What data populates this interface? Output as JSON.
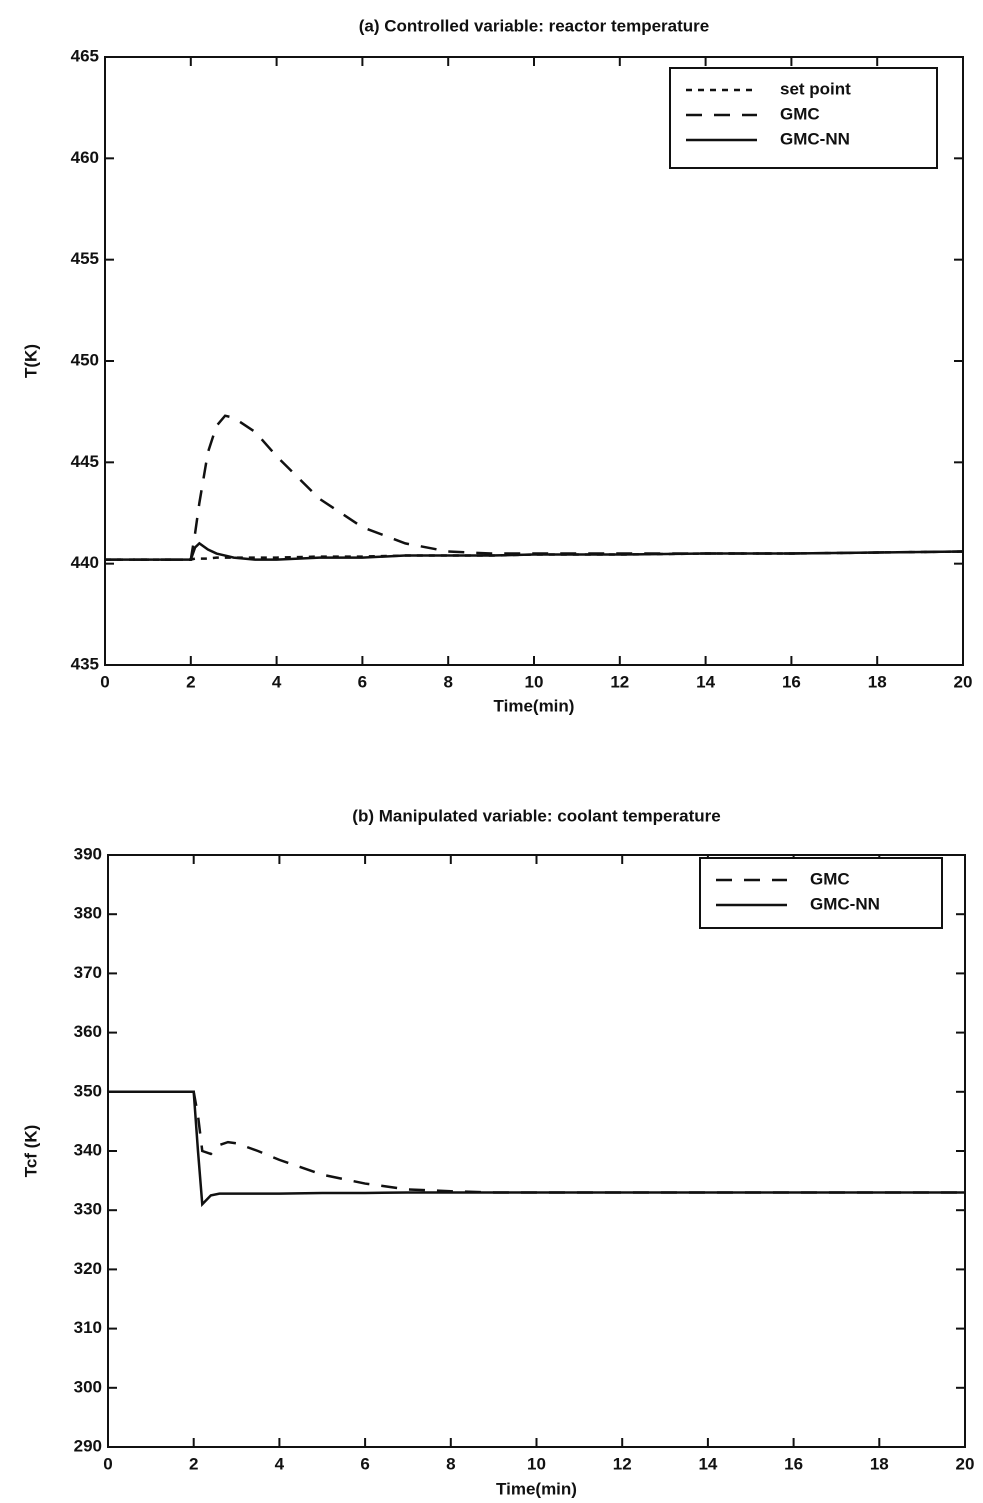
{
  "chart_data": [
    {
      "type": "line",
      "title": "(a) Controlled variable: reactor temperature",
      "x_label": "Time(min)",
      "y_label": "T(K)",
      "x": [
        0,
        1,
        2,
        2.1,
        2.2,
        2.4,
        2.6,
        2.8,
        3,
        3.5,
        4,
        5,
        6,
        7,
        8,
        9,
        10,
        12,
        14,
        16,
        18,
        20
      ],
      "series": [
        {
          "name": "set point",
          "color": "#111111",
          "linestyle": "dotted",
          "values": [
            440.2,
            440.2,
            440.2,
            440.25,
            440.25,
            440.25,
            440.3,
            440.3,
            440.3,
            440.3,
            440.3,
            440.35,
            440.35,
            440.4,
            440.4,
            440.4,
            440.45,
            440.45,
            440.5,
            440.5,
            440.55,
            440.6
          ]
        },
        {
          "name": "GMC",
          "color": "#111111",
          "linestyle": "dashed",
          "values": [
            440.2,
            440.2,
            440.2,
            441.5,
            443,
            445.5,
            446.8,
            447.3,
            447.2,
            446.5,
            445.3,
            443.2,
            441.8,
            441,
            440.6,
            440.5,
            440.5,
            440.5,
            440.5,
            440.5,
            440.55,
            440.6
          ]
        },
        {
          "name": "GMC-NN",
          "color": "#111111",
          "linestyle": "solid",
          "values": [
            440.2,
            440.2,
            440.2,
            440.8,
            441,
            440.7,
            440.5,
            440.4,
            440.3,
            440.2,
            440.2,
            440.3,
            440.3,
            440.4,
            440.4,
            440.4,
            440.45,
            440.45,
            440.5,
            440.5,
            440.55,
            440.6
          ]
        }
      ],
      "xlim": [
        0,
        20
      ],
      "xticks": [
        0,
        2,
        4,
        6,
        8,
        10,
        12,
        14,
        16,
        18,
        20
      ],
      "ylim": [
        435,
        465
      ],
      "yticks": [
        435,
        440,
        445,
        450,
        455,
        460,
        465
      ],
      "legend": "upper right"
    },
    {
      "type": "line",
      "title": "(b) Manipulated variable: coolant temperature",
      "x_label": "Time(min)",
      "y_label": "Tcf (K)",
      "x": [
        0,
        1,
        2,
        2.1,
        2.2,
        2.4,
        2.6,
        2.8,
        3,
        3.5,
        4,
        5,
        6,
        7,
        8,
        9,
        10,
        12,
        14,
        16,
        18,
        20
      ],
      "series": [
        {
          "name": "GMC",
          "color": "#111111",
          "linestyle": "dashed",
          "values": [
            350,
            350,
            350,
            346,
            340,
            339.5,
            341,
            341.5,
            341.3,
            340,
            338.5,
            336,
            334.5,
            333.5,
            333.2,
            333,
            333,
            333,
            333,
            333,
            333,
            333
          ]
        },
        {
          "name": "GMC-NN",
          "color": "#111111",
          "linestyle": "solid",
          "values": [
            350,
            350,
            350,
            340,
            331,
            332.5,
            332.8,
            332.8,
            332.8,
            332.8,
            332.8,
            332.9,
            332.9,
            333,
            333,
            333,
            333,
            333,
            333,
            333,
            333,
            333
          ]
        }
      ],
      "xlim": [
        0,
        20
      ],
      "xticks": [
        0,
        2,
        4,
        6,
        8,
        10,
        12,
        14,
        16,
        18,
        20
      ],
      "ylim": [
        290,
        390
      ],
      "yticks": [
        290,
        300,
        310,
        320,
        330,
        340,
        350,
        360,
        370,
        380,
        390
      ],
      "legend": "upper right"
    }
  ]
}
